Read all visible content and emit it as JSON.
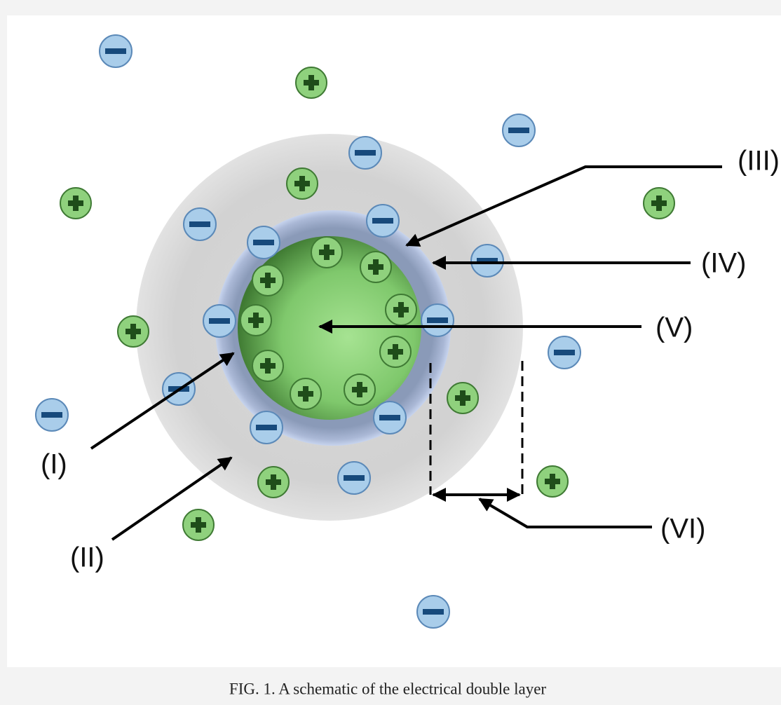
{
  "labels": {
    "i": "(I)",
    "ii": "(II)",
    "iii": "(III)",
    "iv": "(IV)",
    "v": "(V)",
    "vi": "(VI)"
  },
  "caption": "FIG. 1. A schematic of the electrical double layer"
}
